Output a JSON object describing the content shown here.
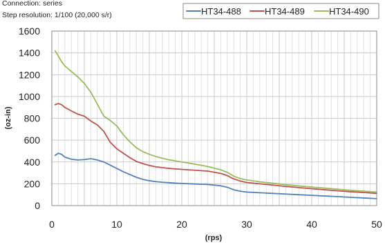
{
  "header": {
    "connection_label": "Connection: series",
    "resolution_label": "Step resolution: 1/100 (20,000 s/r)"
  },
  "chart_data": {
    "type": "line",
    "title": "",
    "xlabel": "(rps)",
    "ylabel": "(oz-in)",
    "xlim": [
      0,
      50
    ],
    "ylim": [
      0,
      1600
    ],
    "x_ticks": [
      0,
      10,
      20,
      30,
      40,
      50
    ],
    "y_ticks": [
      0,
      200,
      400,
      600,
      800,
      1000,
      1200,
      1400,
      1600
    ],
    "x_tick_labels": [
      "0",
      "10",
      "20",
      "30",
      "40",
      "50"
    ],
    "y_tick_labels": [
      "0",
      "200",
      "400",
      "600",
      "800",
      "1000",
      "1200",
      "1400",
      "1600"
    ],
    "grid": true,
    "legend_position": "top-right",
    "series": [
      {
        "name": "HT34-488",
        "color": "#4f81bd",
        "points": [
          [
            0.5,
            460
          ],
          [
            1,
            480
          ],
          [
            1.5,
            470
          ],
          [
            2,
            445
          ],
          [
            3,
            425
          ],
          [
            4,
            418
          ],
          [
            5,
            422
          ],
          [
            6,
            430
          ],
          [
            7,
            418
          ],
          [
            8,
            400
          ],
          [
            9,
            370
          ],
          [
            10,
            340
          ],
          [
            11,
            310
          ],
          [
            12,
            285
          ],
          [
            13,
            260
          ],
          [
            14,
            240
          ],
          [
            15,
            228
          ],
          [
            16,
            220
          ],
          [
            17,
            214
          ],
          [
            18,
            210
          ],
          [
            19,
            206
          ],
          [
            20,
            203
          ],
          [
            22,
            198
          ],
          [
            24,
            194
          ],
          [
            26,
            182
          ],
          [
            27,
            168
          ],
          [
            28,
            145
          ],
          [
            29,
            132
          ],
          [
            30,
            124
          ],
          [
            32,
            118
          ],
          [
            34,
            112
          ],
          [
            36,
            106
          ],
          [
            38,
            100
          ],
          [
            40,
            94
          ],
          [
            42,
            88
          ],
          [
            44,
            82
          ],
          [
            46,
            76
          ],
          [
            48,
            70
          ],
          [
            50,
            64
          ]
        ]
      },
      {
        "name": "HT34-489",
        "color": "#c0504d",
        "points": [
          [
            0.5,
            925
          ],
          [
            1,
            935
          ],
          [
            1.5,
            925
          ],
          [
            2,
            900
          ],
          [
            3,
            868
          ],
          [
            4,
            838
          ],
          [
            5,
            820
          ],
          [
            6,
            775
          ],
          [
            7,
            740
          ],
          [
            8,
            680
          ],
          [
            9,
            580
          ],
          [
            10,
            520
          ],
          [
            11,
            480
          ],
          [
            12,
            440
          ],
          [
            13,
            405
          ],
          [
            14,
            385
          ],
          [
            15,
            368
          ],
          [
            16,
            356
          ],
          [
            17,
            348
          ],
          [
            18,
            342
          ],
          [
            19,
            336
          ],
          [
            20,
            332
          ],
          [
            22,
            324
          ],
          [
            24,
            316
          ],
          [
            26,
            295
          ],
          [
            27,
            275
          ],
          [
            28,
            245
          ],
          [
            29,
            225
          ],
          [
            30,
            212
          ],
          [
            32,
            200
          ],
          [
            34,
            188
          ],
          [
            36,
            176
          ],
          [
            38,
            165
          ],
          [
            40,
            155
          ],
          [
            42,
            145
          ],
          [
            44,
            136
          ],
          [
            46,
            127
          ],
          [
            48,
            120
          ],
          [
            50,
            112
          ]
        ]
      },
      {
        "name": "HT34-490",
        "color": "#9bbb59",
        "points": [
          [
            0.5,
            1420
          ],
          [
            1,
            1370
          ],
          [
            1.5,
            1320
          ],
          [
            2,
            1280
          ],
          [
            3,
            1230
          ],
          [
            4,
            1180
          ],
          [
            5,
            1120
          ],
          [
            6,
            1040
          ],
          [
            7,
            930
          ],
          [
            8,
            820
          ],
          [
            9,
            780
          ],
          [
            10,
            730
          ],
          [
            11,
            650
          ],
          [
            12,
            585
          ],
          [
            13,
            530
          ],
          [
            14,
            495
          ],
          [
            15,
            470
          ],
          [
            16,
            450
          ],
          [
            17,
            435
          ],
          [
            18,
            420
          ],
          [
            19,
            410
          ],
          [
            20,
            400
          ],
          [
            22,
            380
          ],
          [
            24,
            358
          ],
          [
            26,
            328
          ],
          [
            27,
            305
          ],
          [
            28,
            270
          ],
          [
            29,
            248
          ],
          [
            30,
            235
          ],
          [
            32,
            218
          ],
          [
            34,
            205
          ],
          [
            36,
            192
          ],
          [
            38,
            180
          ],
          [
            40,
            170
          ],
          [
            42,
            160
          ],
          [
            44,
            150
          ],
          [
            46,
            140
          ],
          [
            48,
            132
          ],
          [
            50,
            124
          ]
        ]
      }
    ]
  }
}
